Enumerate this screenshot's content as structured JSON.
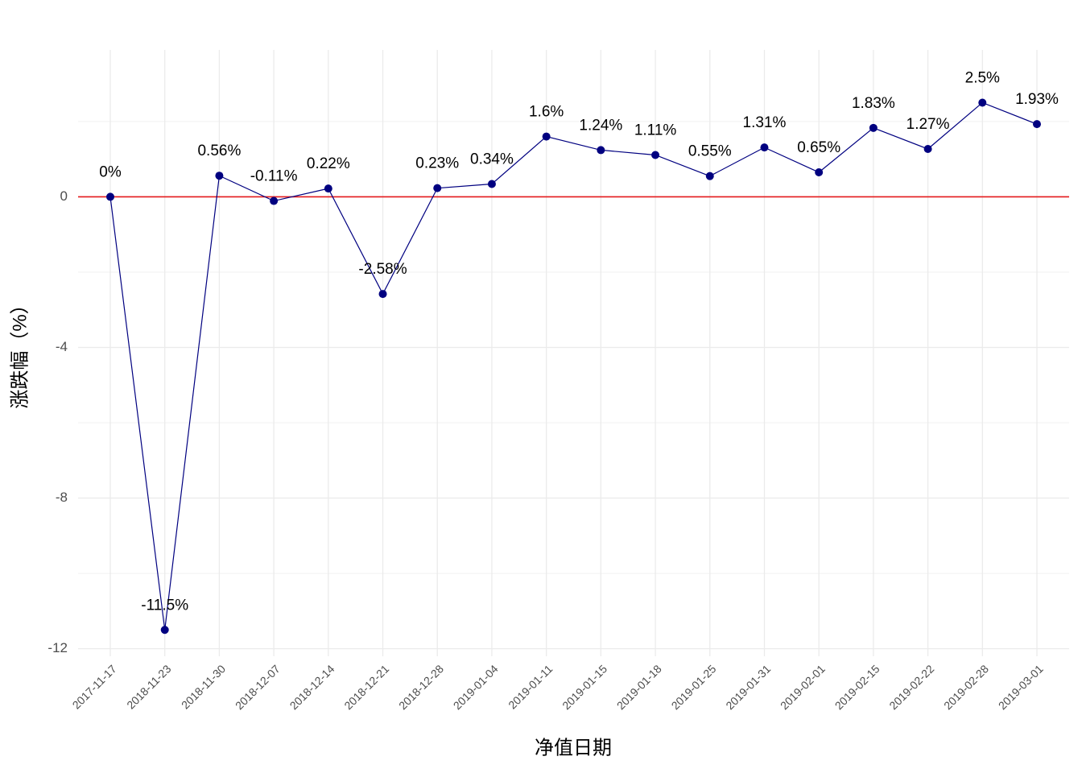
{
  "chart_data": {
    "type": "line",
    "x_label": "净值日期",
    "y_label": "涨跌幅（%）",
    "categories": [
      "2017-11-17",
      "2018-11-23",
      "2018-11-30",
      "2018-12-07",
      "2018-12-14",
      "2018-12-21",
      "2018-12-28",
      "2019-01-04",
      "2019-01-11",
      "2019-01-15",
      "2019-01-18",
      "2019-01-25",
      "2019-01-31",
      "2019-02-01",
      "2019-02-15",
      "2019-02-22",
      "2019-02-28",
      "2019-03-01"
    ],
    "series": [
      {
        "name": "涨跌幅",
        "color": "#000080",
        "values": [
          0,
          -11.5,
          0.56,
          -0.11,
          0.22,
          -2.58,
          0.23,
          0.34,
          1.6,
          1.24,
          1.11,
          0.55,
          1.31,
          0.65,
          1.83,
          1.27,
          2.5,
          1.93
        ],
        "value_labels": [
          "0%",
          "-11.5%",
          "0.56%",
          "-0.11%",
          "0.22%",
          "-2.58%",
          "0.23%",
          "0.34%",
          "1.6%",
          "1.24%",
          "1.11%",
          "0.55%",
          "1.31%",
          "0.65%",
          "1.83%",
          "1.27%",
          "2.5%",
          "1.93%"
        ]
      }
    ],
    "reference_line": {
      "value": 0,
      "color": "#e41a1c"
    },
    "ylim": [
      -12.2,
      3.9
    ],
    "yticks": [
      -12,
      -8,
      -4,
      0
    ],
    "grid": true
  }
}
